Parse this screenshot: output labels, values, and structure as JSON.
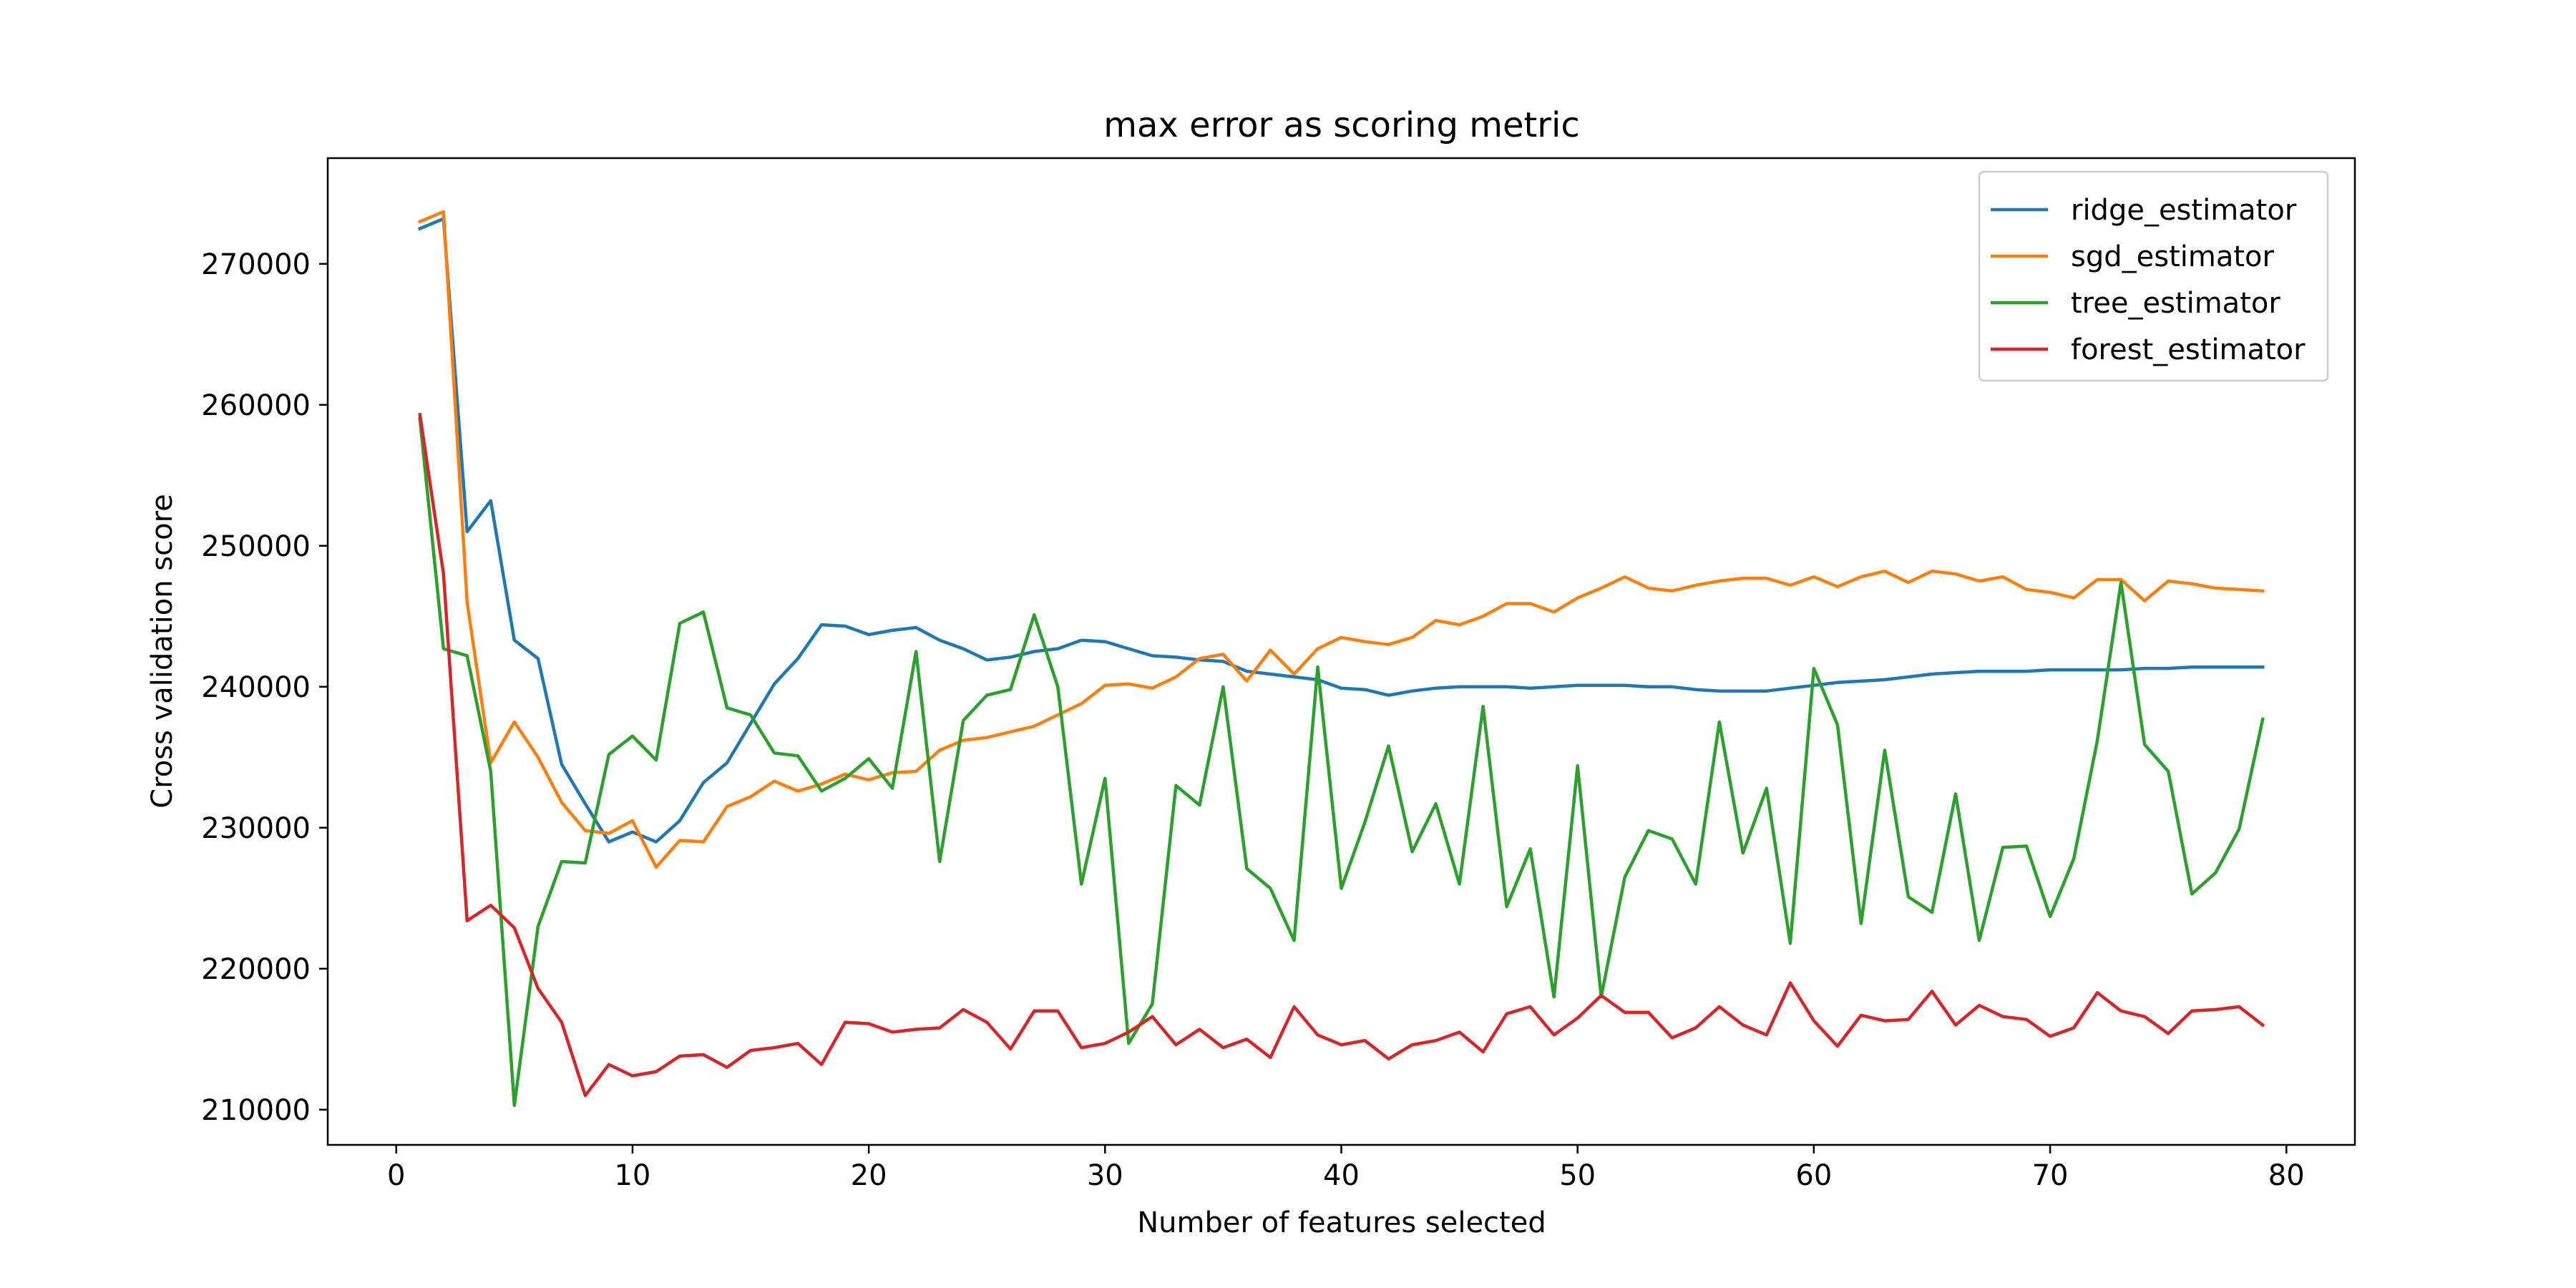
{
  "chart_data": {
    "type": "line",
    "title": "max error as scoring metric",
    "xlabel": "Number of features selected",
    "ylabel": "Cross validation score",
    "xlim": [
      -2.9,
      82.9
    ],
    "ylim": [
      207500,
      277500
    ],
    "xticks": [
      0,
      10,
      20,
      30,
      40,
      50,
      60,
      70,
      80
    ],
    "xtick_labels": [
      "0",
      "10",
      "20",
      "30",
      "40",
      "50",
      "60",
      "70",
      "80"
    ],
    "yticks": [
      210000,
      220000,
      230000,
      240000,
      250000,
      260000,
      270000
    ],
    "ytick_labels": [
      "210000",
      "220000",
      "230000",
      "240000",
      "250000",
      "260000",
      "270000"
    ],
    "legend_position": "upper right",
    "grid": false,
    "x": [
      1,
      2,
      3,
      4,
      5,
      6,
      7,
      8,
      9,
      10,
      11,
      12,
      13,
      14,
      15,
      16,
      17,
      18,
      19,
      20,
      21,
      22,
      23,
      24,
      25,
      26,
      27,
      28,
      29,
      30,
      31,
      32,
      33,
      34,
      35,
      36,
      37,
      38,
      39,
      40,
      41,
      42,
      43,
      44,
      45,
      46,
      47,
      48,
      49,
      50,
      51,
      52,
      53,
      54,
      55,
      56,
      57,
      58,
      59,
      60,
      61,
      62,
      63,
      64,
      65,
      66,
      67,
      68,
      69,
      70,
      71,
      72,
      73,
      74,
      75,
      76,
      77,
      78,
      79
    ],
    "series": [
      {
        "name": "ridge_estimator",
        "color": "#1f77b4",
        "values": [
          272500,
          273200,
          251000,
          253200,
          243300,
          242000,
          234500,
          231700,
          229000,
          229700,
          229000,
          230500,
          233200,
          234600,
          237400,
          240200,
          242000,
          244400,
          244300,
          243700,
          244000,
          244200,
          243300,
          242700,
          241900,
          242100,
          242500,
          242700,
          243300,
          243200,
          242700,
          242200,
          242100,
          241900,
          241800,
          241100,
          240900,
          240700,
          240500,
          239900,
          239800,
          239400,
          239700,
          239900,
          240000,
          240000,
          240000,
          239900,
          240000,
          240100,
          240100,
          240100,
          240000,
          240000,
          239800,
          239700,
          239700,
          239700,
          239900,
          240100,
          240300,
          240400,
          240500,
          240700,
          240900,
          241000,
          241100,
          241100,
          241100,
          241200,
          241200,
          241200,
          241200,
          241300,
          241300,
          241400,
          241400,
          241400,
          241400
        ]
      },
      {
        "name": "sgd_estimator",
        "color": "#ff7f0e",
        "values": [
          273000,
          273700,
          246000,
          234600,
          237500,
          235000,
          231800,
          229800,
          229600,
          230500,
          227200,
          229100,
          229000,
          231500,
          232200,
          233300,
          232600,
          233100,
          233800,
          233400,
          233900,
          234000,
          235500,
          236200,
          236400,
          236800,
          237200,
          238000,
          238800,
          240100,
          240200,
          239900,
          240700,
          242000,
          242300,
          240400,
          242600,
          240900,
          242700,
          243500,
          243200,
          243000,
          243500,
          244700,
          244400,
          245000,
          245900,
          245900,
          245300,
          246300,
          247000,
          247800,
          247000,
          246800,
          247200,
          247500,
          247700,
          247700,
          247200,
          247800,
          247100,
          247800,
          248200,
          247400,
          248200,
          248000,
          247500,
          247800,
          246900,
          246700,
          246300,
          247600,
          247600,
          246100,
          247500,
          247300,
          247000,
          246900,
          246800
        ]
      },
      {
        "name": "tree_estimator",
        "color": "#2ca02c",
        "values": [
          259000,
          242700,
          242200,
          234000,
          210300,
          223000,
          227600,
          227500,
          235200,
          236500,
          234800,
          244500,
          245300,
          238500,
          238000,
          235300,
          235100,
          232600,
          233500,
          234900,
          232800,
          242500,
          227600,
          237600,
          239400,
          239800,
          245100,
          240000,
          226000,
          233500,
          214700,
          217500,
          233000,
          231600,
          240000,
          227100,
          225700,
          222000,
          241400,
          225700,
          230400,
          235800,
          228300,
          231700,
          226000,
          238600,
          224400,
          228500,
          218000,
          234400,
          218000,
          226500,
          229800,
          229200,
          226000,
          237500,
          228200,
          232800,
          221800,
          241300,
          237300,
          223200,
          235500,
          225100,
          224000,
          232400,
          222000,
          228600,
          228700,
          223700,
          227800,
          236200,
          247400,
          235900,
          234000,
          225300,
          226800,
          229900,
          237700
        ]
      },
      {
        "name": "forest_estimator",
        "color": "#d62728",
        "values": [
          259300,
          248000,
          223400,
          224500,
          222900,
          218600,
          216200,
          211000,
          213200,
          212400,
          212700,
          213800,
          213900,
          213000,
          214200,
          214400,
          214700,
          213200,
          216200,
          216100,
          215500,
          215700,
          215800,
          217100,
          216200,
          214300,
          217000,
          217000,
          214400,
          214700,
          215500,
          216600,
          214600,
          215700,
          214400,
          215000,
          213700,
          217300,
          215300,
          214600,
          214900,
          213600,
          214600,
          214900,
          215500,
          214100,
          216800,
          217300,
          215300,
          216500,
          218100,
          216900,
          216900,
          215100,
          215800,
          217300,
          216000,
          215300,
          219000,
          216300,
          214500,
          216700,
          216300,
          216400,
          218400,
          216000,
          217400,
          216600,
          216400,
          215200,
          215800,
          218300,
          217000,
          216600,
          215400,
          217000,
          217100,
          217300,
          216000
        ]
      }
    ]
  }
}
